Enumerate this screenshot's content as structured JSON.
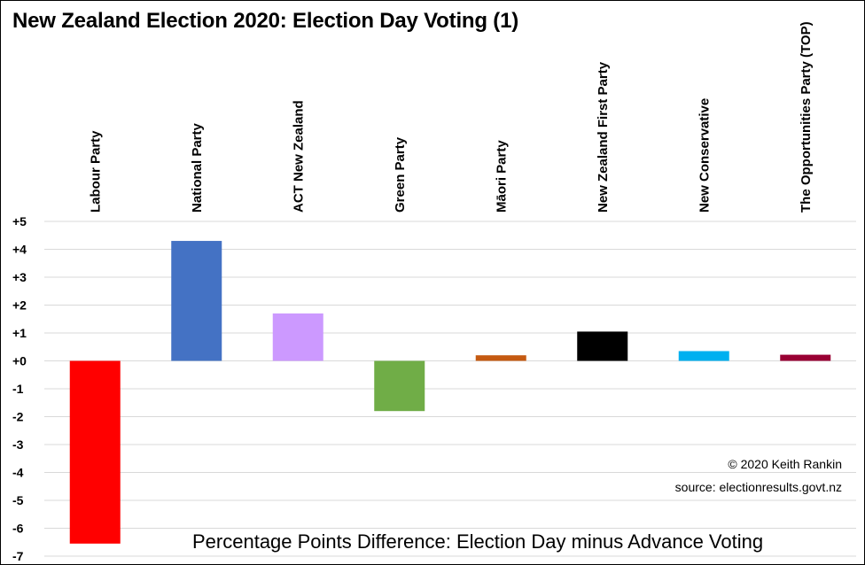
{
  "title": "New Zealand Election 2020: Election Day Voting (1)",
  "credit": "© 2020 Keith Rankin",
  "source": "source:  electionresults.govt.nz",
  "chart_data": {
    "type": "bar",
    "title": "New Zealand Election 2020: Election Day Voting (1)",
    "xlabel": "Percentage Points Difference: Election Day minus Advance Voting",
    "ylabel": "",
    "ylim": [
      -7,
      5
    ],
    "yticks": [
      "+5",
      "+4",
      "+3",
      "+2",
      "+1",
      "+0",
      "-1",
      "-2",
      "-3",
      "-4",
      "-5",
      "-6",
      "-7"
    ],
    "grid": true,
    "categories": [
      "Labour Party",
      "National Party",
      "ACT New Zealand",
      "Green Party",
      "Māori Party",
      "New Zealand First Party",
      "New Conservative",
      "The Opportunities Party (TOP)"
    ],
    "values": [
      -6.55,
      4.3,
      1.7,
      -1.8,
      0.2,
      1.05,
      0.35,
      0.22
    ],
    "colors": [
      "#ff0000",
      "#4472c4",
      "#cc99ff",
      "#70ad47",
      "#c55a11",
      "#000000",
      "#00b0f0",
      "#990033"
    ]
  }
}
